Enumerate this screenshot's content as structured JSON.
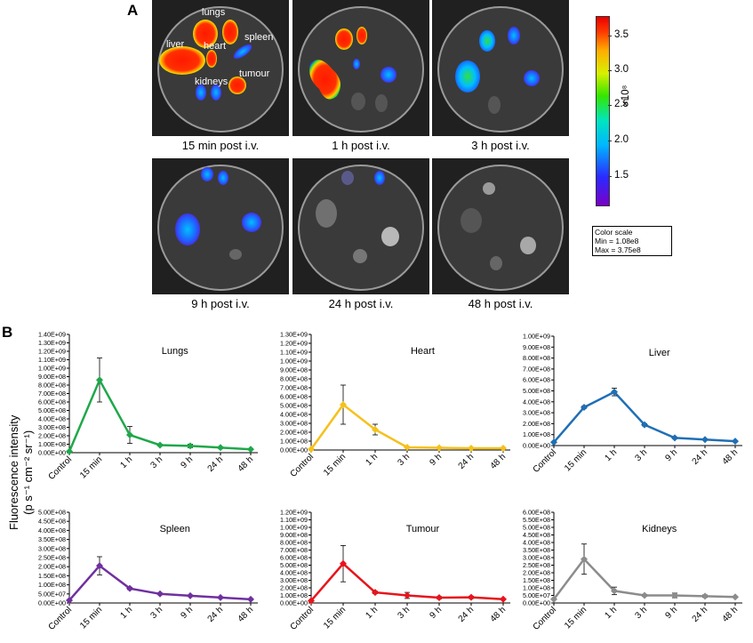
{
  "panel_a": {
    "letter": "A",
    "organ_labels": {
      "lungs": "lungs",
      "liver": "liver",
      "heart": "heart",
      "spleen": "spleen",
      "tumour": "tumour",
      "kidneys": "kidneys"
    },
    "captions": [
      "15 min post i.v.",
      "1 h post i.v.",
      "3 h post i.v.",
      "9 h post i.v.",
      "24 h post i.v.",
      "48 h post i.v."
    ],
    "colorbar": {
      "ticks": [
        "3.5",
        "3.0",
        "2.5",
        "2.0",
        "1.5"
      ],
      "exponent": "×10⁸",
      "legend_title": "Color scale",
      "legend_min": "Min = 1.08e8",
      "legend_max": "Max = 3.75e8"
    }
  },
  "panel_b": {
    "letter": "B",
    "ylabel_line1": "Fluorescence intensity",
    "ylabel_line2": "(p s⁻¹ cm⁻² sr⁻¹)"
  },
  "chart_data": [
    {
      "type": "line",
      "title": "Lungs",
      "color": "#1fa84a",
      "categories": [
        "Control",
        "15 min",
        "1 h",
        "3 h",
        "9 h",
        "24 h",
        "48 h"
      ],
      "values": [
        15000000.0,
        860000000.0,
        210000000.0,
        90000000.0,
        80000000.0,
        60000000.0,
        40000000.0
      ],
      "errors": [
        0,
        260000000.0,
        100000000.0,
        10000000.0,
        20000000.0,
        10000000.0,
        8000000.0
      ],
      "ylim": [
        0,
        1400000000.0
      ],
      "yticks": [
        "0.00E+00",
        "1.00E+08",
        "2.00E+08",
        "3.00E+08",
        "4.00E+08",
        "5.00E+08",
        "6.00E+08",
        "7.00E+08",
        "8.00E+08",
        "9.00E+08",
        "1.00E+09",
        "1.10E+09",
        "1.20E+09",
        "1.30E+09",
        "1.40E+09"
      ],
      "ytick_values": [
        0,
        100000000.0,
        200000000.0,
        300000000.0,
        400000000.0,
        500000000.0,
        600000000.0,
        700000000.0,
        800000000.0,
        900000000.0,
        1000000000.0,
        1100000000.0,
        1200000000.0,
        1300000000.0,
        1400000000.0
      ]
    },
    {
      "type": "line",
      "title": "Heart",
      "color": "#f5c11b",
      "categories": [
        "Control",
        "15 min",
        "1 h",
        "3 h",
        "9 h",
        "24 h",
        "48 h"
      ],
      "values": [
        10000000.0,
        510000000.0,
        230000000.0,
        30000000.0,
        25000000.0,
        20000000.0,
        20000000.0
      ],
      "errors": [
        0,
        220000000.0,
        60000000.0,
        5000000.0,
        5000000.0,
        5000000.0,
        5000000.0
      ],
      "ylim": [
        0,
        1300000000.0
      ],
      "yticks": [
        "0.00E+00",
        "1.00E+08",
        "2.00E+08",
        "3.00E+08",
        "4.00E+08",
        "5.00E+08",
        "6.00E+08",
        "7.00E+08",
        "8.00E+08",
        "9.00E+08",
        "1.00E+09",
        "1.10E+09",
        "1.20E+09",
        "1.30E+09"
      ],
      "ytick_values": [
        0,
        100000000.0,
        200000000.0,
        300000000.0,
        400000000.0,
        500000000.0,
        600000000.0,
        700000000.0,
        800000000.0,
        900000000.0,
        1000000000.0,
        1100000000.0,
        1200000000.0,
        1300000000.0
      ]
    },
    {
      "type": "line",
      "title": "Liver",
      "color": "#1f6fb5",
      "categories": [
        "Control",
        "15 min",
        "1 h",
        "3 h",
        "9 h",
        "24 h",
        "48 h"
      ],
      "values": [
        30000000.0,
        350000000.0,
        490000000.0,
        190000000.0,
        70000000.0,
        55000000.0,
        40000000.0
      ],
      "errors": [
        0,
        10000000.0,
        35000000.0,
        10000000.0,
        8000000.0,
        6000000.0,
        5000000.0
      ],
      "ylim": [
        0,
        1000000000.0
      ],
      "yticks": [
        "0.00E+00",
        "1.00E+08",
        "2.00E+08",
        "3.00E+08",
        "4.00E+08",
        "5.00E+08",
        "6.00E+08",
        "7.00E+08",
        "8.00E+08",
        "9.00E+08",
        "1.00E+09"
      ],
      "ytick_values": [
        0,
        100000000.0,
        200000000.0,
        300000000.0,
        400000000.0,
        500000000.0,
        600000000.0,
        700000000.0,
        800000000.0,
        900000000.0,
        1000000000.0
      ]
    },
    {
      "type": "line",
      "title": "Spleen",
      "color": "#7030a0",
      "categories": [
        "Control",
        "15 min",
        "1 h",
        "3 h",
        "9 h",
        "24 h",
        "48 h"
      ],
      "values": [
        15000000.0,
        205000000.0,
        80000000.0,
        50000000.0,
        40000000.0,
        30000000.0,
        20000000.0
      ],
      "errors": [
        0,
        50000000.0,
        6000000.0,
        5000000.0,
        4000000.0,
        4000000.0,
        3000000.0
      ],
      "ylim": [
        0,
        500000000.0
      ],
      "yticks": [
        "0.00E+00",
        "5.00E+07",
        "1.00E+08",
        "1.50E+08",
        "2.00E+08",
        "2.50E+08",
        "3.00E+08",
        "3.50E+08",
        "4.00E+08",
        "4.50E+08",
        "5.00E+08"
      ],
      "ytick_values": [
        0,
        50000000.0,
        100000000.0,
        150000000.0,
        200000000.0,
        250000000.0,
        300000000.0,
        350000000.0,
        400000000.0,
        450000000.0,
        500000000.0
      ]
    },
    {
      "type": "line",
      "title": "Tumour",
      "color": "#e8141b",
      "categories": [
        "Control",
        "15 min",
        "1 h",
        "3 h",
        "9 h",
        "24 h",
        "48 h"
      ],
      "values": [
        30000000.0,
        520000000.0,
        140000000.0,
        100000000.0,
        70000000.0,
        75000000.0,
        50000000.0
      ],
      "errors": [
        0,
        240000000.0,
        15000000.0,
        40000000.0,
        15000000.0,
        15000000.0,
        8000000.0
      ],
      "ylim": [
        0,
        1200000000.0
      ],
      "yticks": [
        "0.00E+00",
        "1.00E+08",
        "2.00E+08",
        "3.00E+08",
        "4.00E+08",
        "5.00E+08",
        "6.00E+08",
        "7.00E+08",
        "8.00E+08",
        "9.00E+08",
        "1.00E+09",
        "1.10E+09",
        "1.20E+09"
      ],
      "ytick_values": [
        0,
        100000000.0,
        200000000.0,
        300000000.0,
        400000000.0,
        500000000.0,
        600000000.0,
        700000000.0,
        800000000.0,
        900000000.0,
        1000000000.0,
        1100000000.0,
        1200000000.0
      ]
    },
    {
      "type": "line",
      "title": "Kidneys",
      "color": "#8c8c8c",
      "categories": [
        "Control",
        "15 min",
        "1 h",
        "3 h",
        "9 h",
        "24 h",
        "48 h"
      ],
      "values": [
        25000000.0,
        290000000.0,
        80000000.0,
        50000000.0,
        50000000.0,
        45000000.0,
        40000000.0
      ],
      "errors": [
        0,
        100000000.0,
        25000000.0,
        6000000.0,
        15000000.0,
        8000000.0,
        5000000.0
      ],
      "ylim": [
        0,
        600000000.0
      ],
      "yticks": [
        "0.00E+00",
        "5.00E+07",
        "1.00E+08",
        "1.50E+08",
        "2.00E+08",
        "2.50E+08",
        "3.00E+08",
        "3.50E+08",
        "4.00E+08",
        "4.50E+08",
        "5.00E+08",
        "5.50E+08",
        "6.00E+08"
      ],
      "ytick_values": [
        0,
        50000000.0,
        100000000.0,
        150000000.0,
        200000000.0,
        250000000.0,
        300000000.0,
        350000000.0,
        400000000.0,
        450000000.0,
        500000000.0,
        550000000.0,
        600000000.0
      ]
    }
  ]
}
